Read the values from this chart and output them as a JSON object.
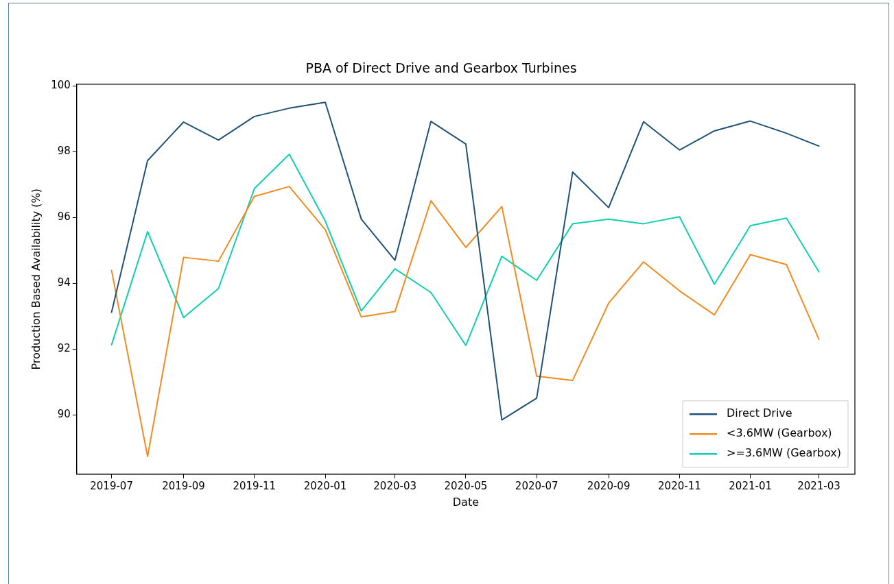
{
  "chart_data": {
    "type": "line",
    "title": "PBA of Direct Drive and Gearbox Turbines",
    "xlabel": "Date",
    "ylabel": "Production Based Availability (%)",
    "x": [
      "2019-07",
      "2019-08",
      "2019-09",
      "2019-10",
      "2019-11",
      "2019-12",
      "2020-01",
      "2020-02",
      "2020-03",
      "2020-04",
      "2020-05",
      "2020-06",
      "2020-07",
      "2020-08",
      "2020-09",
      "2020-10",
      "2020-11",
      "2020-12",
      "2021-01",
      "2021-02",
      "2021-03"
    ],
    "series": [
      {
        "name": "Direct Drive",
        "color": "#1f5277",
        "values": [
          93.12,
          97.73,
          98.9,
          98.35,
          99.07,
          99.32,
          99.5,
          95.95,
          94.7,
          98.92,
          98.23,
          89.85,
          90.51,
          97.38,
          96.3,
          98.91,
          98.05,
          98.63,
          98.93,
          98.56,
          98.17
        ]
      },
      {
        "name": "<3.6MW (Gearbox)",
        "color": "#f28a1e",
        "values": [
          94.39,
          88.74,
          94.79,
          94.67,
          96.64,
          96.94,
          95.63,
          92.98,
          93.14,
          96.51,
          95.09,
          96.33,
          91.18,
          91.05,
          93.4,
          94.65,
          93.77,
          93.04,
          94.87,
          94.57,
          92.3
        ]
      },
      {
        "name": ">=3.6MW (Gearbox)",
        "color": "#10cfae",
        "values": [
          92.13,
          95.57,
          92.96,
          93.84,
          96.88,
          97.92,
          95.89,
          93.16,
          94.44,
          93.72,
          92.11,
          94.82,
          94.09,
          95.81,
          95.95,
          95.81,
          96.02,
          93.97,
          95.75,
          95.98,
          94.35
        ]
      }
    ],
    "xlim": [
      "2019-06-01",
      "2021-04-01"
    ],
    "xticks": [
      "2019-07",
      "2019-09",
      "2019-11",
      "2020-01",
      "2020-03",
      "2020-05",
      "2020-07",
      "2020-09",
      "2020-11",
      "2021-01",
      "2021-03"
    ],
    "ylim": [
      88.2,
      100.05
    ],
    "yticks": [
      90,
      92,
      94,
      96,
      98,
      100
    ],
    "grid": false,
    "legend": "bottom right",
    "marker": "none",
    "line_style": "solid"
  }
}
